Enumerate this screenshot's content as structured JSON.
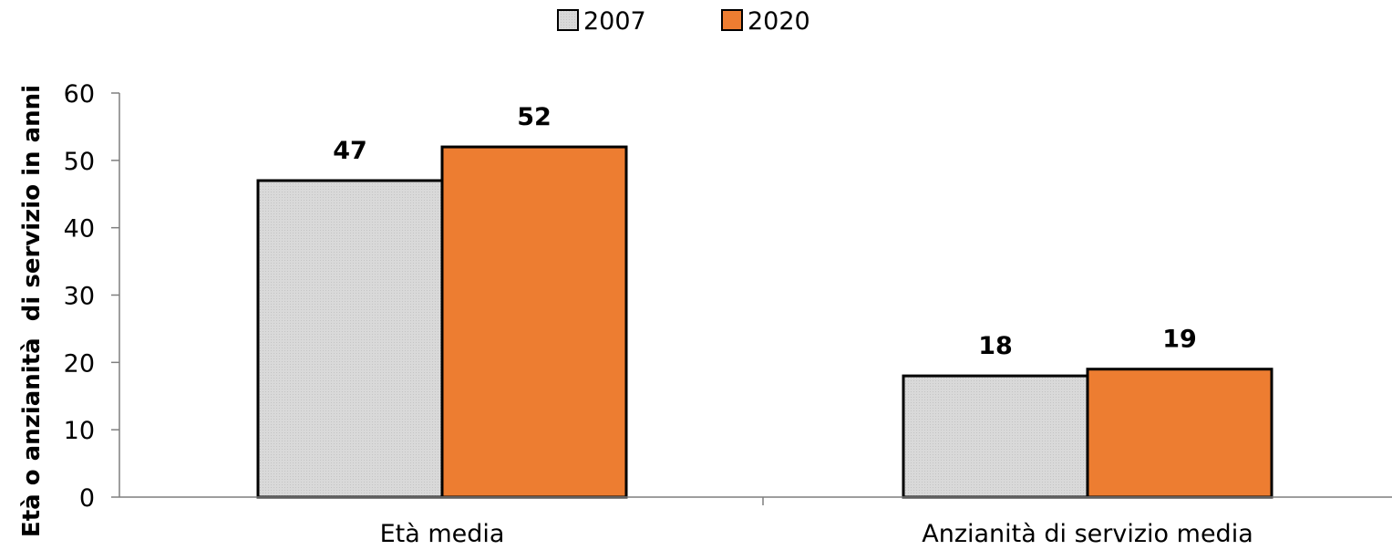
{
  "chart_data": {
    "type": "bar",
    "categories": [
      "Età media",
      "Anzianità di servizio media"
    ],
    "series": [
      {
        "name": "2007",
        "values": [
          47,
          18
        ],
        "color": "#d9d9d9",
        "labels": [
          "47",
          "18"
        ]
      },
      {
        "name": "2020",
        "values": [
          52,
          19
        ],
        "color": "#ed7d31",
        "labels": [
          "52",
          "19"
        ]
      }
    ],
    "ylabel": "Età o anzianità  di servizio in anni",
    "ylim": [
      0,
      60
    ],
    "yticks": [
      0,
      10,
      20,
      30,
      40,
      50,
      60
    ],
    "grid": false,
    "legend_position": "top-center",
    "bar_outline": "#000000",
    "axis_color": "#7f7f7f"
  }
}
